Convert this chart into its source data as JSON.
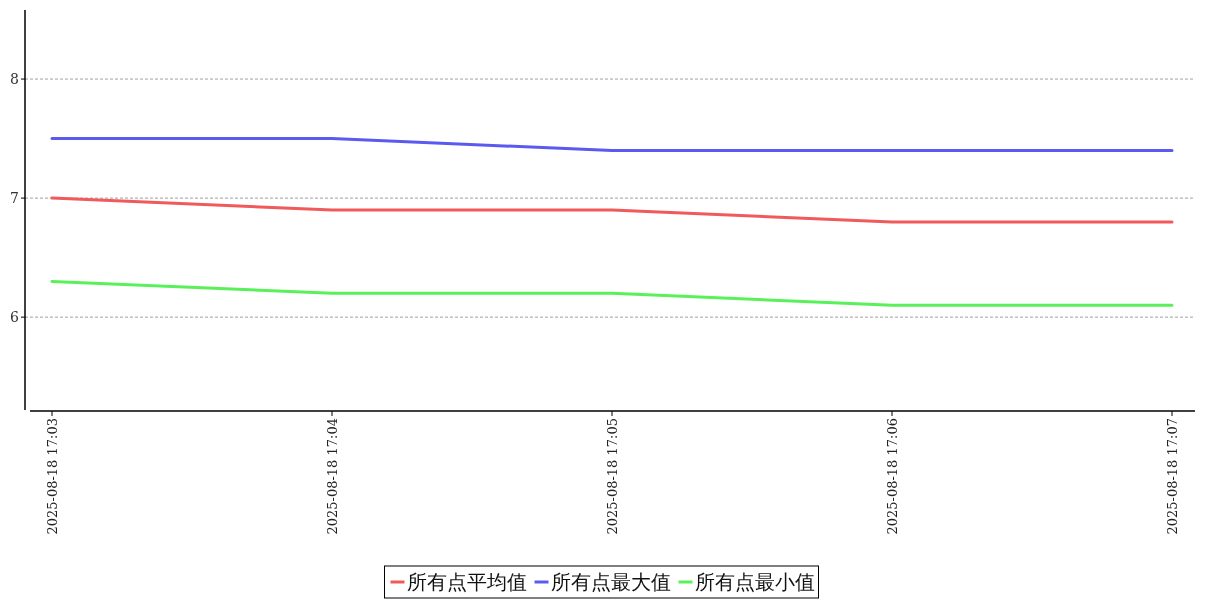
{
  "chart_data": {
    "type": "line",
    "categories": [
      "2025-08-18 17:03",
      "2025-08-18 17:04",
      "2025-08-18 17:05",
      "2025-08-18 17:06",
      "2025-08-18 17:07"
    ],
    "series": [
      {
        "name": "所有点平均值",
        "color": "#f05a5a",
        "values": [
          7.0,
          6.9,
          6.9,
          6.8,
          6.8
        ]
      },
      {
        "name": "所有点最大值",
        "color": "#5a5af0",
        "values": [
          7.5,
          7.5,
          7.4,
          7.4,
          7.4
        ]
      },
      {
        "name": "所有点最小值",
        "color": "#5af05a",
        "values": [
          6.3,
          6.2,
          6.2,
          6.1,
          6.1
        ]
      }
    ],
    "ylim": [
      5.22,
      8.58
    ],
    "yticks": [
      6,
      7,
      8
    ],
    "grid": "y",
    "legend": "bottom",
    "marker": "none",
    "line_style": "solid"
  }
}
